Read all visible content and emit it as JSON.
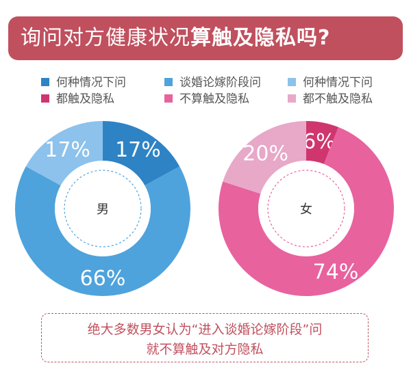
{
  "header": {
    "title_regular": "询问对方健康状况",
    "title_bold": "算触及隐私吗?"
  },
  "legend": {
    "items": [
      {
        "label": "何种情况下问",
        "color": "#2e83c5"
      },
      {
        "label": "谈婚论嫁阶段问",
        "color": "#4ea3dc"
      },
      {
        "label": "何种情况下问",
        "color": "#8cc2ec"
      },
      {
        "label": "都触及隐私",
        "color": "#d0366e"
      },
      {
        "label": "不算触及隐私",
        "color": "#e8629e"
      },
      {
        "label": "都不触及隐私",
        "color": "#e8a8c8"
      }
    ]
  },
  "chart_data": [
    {
      "type": "pie",
      "center_label": "男",
      "slices": [
        {
          "value": 17,
          "label": "17%",
          "color": "#2e83c5"
        },
        {
          "value": 66,
          "label": "66%",
          "color": "#4ea3dc"
        },
        {
          "value": 17,
          "label": "17%",
          "color": "#8cc2ec"
        }
      ]
    },
    {
      "type": "pie",
      "center_label": "女",
      "slices": [
        {
          "value": 6,
          "label": "6%",
          "color": "#d0366e"
        },
        {
          "value": 74,
          "label": "74%",
          "color": "#e8629e"
        },
        {
          "value": 20,
          "label": "20%",
          "color": "#e8a8c8"
        }
      ]
    }
  ],
  "note": {
    "line1": "绝大多数男女认为“进入谈婚论嫁阶段”问",
    "line2": "就不算触及对方隐私"
  },
  "colors": {
    "banner": "#c0505e",
    "note_border": "#c0505e",
    "center_dash_male": "#4ea3dc",
    "center_dash_female": "#e8629e"
  }
}
